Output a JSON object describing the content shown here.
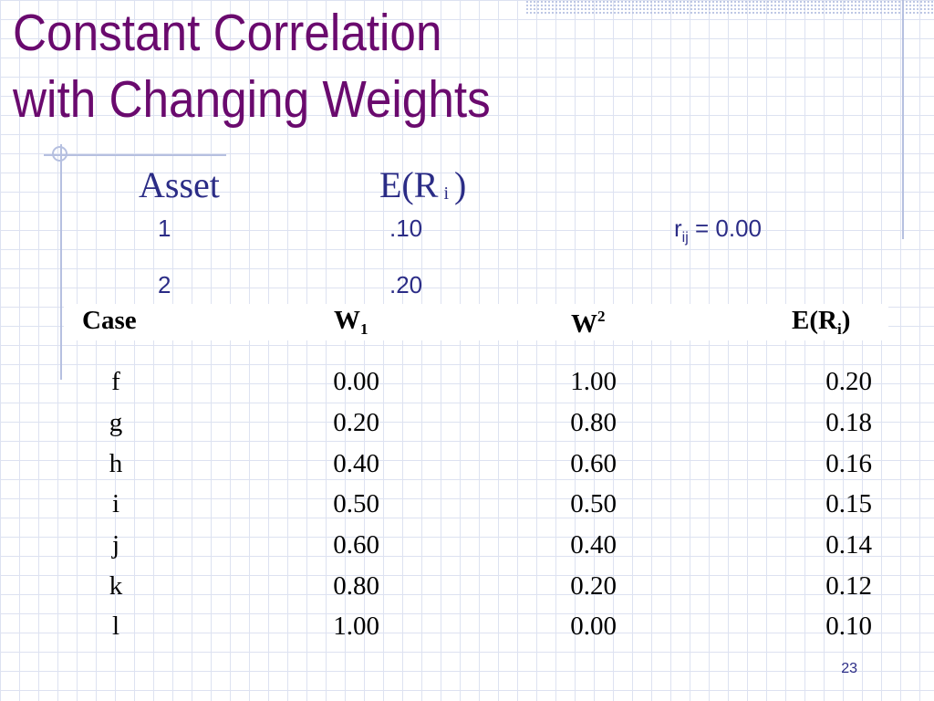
{
  "slide": {
    "title_line1": "Constant Correlation",
    "title_line2": "with Changing Weights",
    "page_number": "23"
  },
  "assets_header": {
    "asset_label": "Asset",
    "er_prefix": "E(R",
    "er_sub": "i",
    "er_suffix": ")"
  },
  "assets": [
    {
      "id": "1",
      "er": ".10"
    },
    {
      "id": "2",
      "er": ".20"
    }
  ],
  "correlation": {
    "r": "r",
    "sub": "ij",
    "value": " = 0.00"
  },
  "table": {
    "headers": {
      "case": "Case",
      "w1_base": "W",
      "w1_sub": "1",
      "w2_base": "W",
      "w2_sup": "2",
      "er_base": "E(R",
      "er_sub": "i",
      "er_end": ")"
    },
    "rows": [
      {
        "case": "f",
        "w1": "0.00",
        "w2": "1.00",
        "er": "0.20"
      },
      {
        "case": "g",
        "w1": "0.20",
        "w2": "0.80",
        "er": "0.18"
      },
      {
        "case": "h",
        "w1": "0.40",
        "w2": "0.60",
        "er": "0.16"
      },
      {
        "case": "i",
        "w1": "0.50",
        "w2": "0.50",
        "er": "0.15"
      },
      {
        "case": "j",
        "w1": "0.60",
        "w2": "0.40",
        "er": "0.14"
      },
      {
        "case": "k",
        "w1": "0.80",
        "w2": "0.20",
        "er": "0.12"
      },
      {
        "case": "l",
        "w1": "1.00",
        "w2": "0.00",
        "er": "0.10"
      }
    ]
  },
  "colors": {
    "title": "#6a0a6e",
    "navy": "#2b2c86",
    "grid": "#dde2f1",
    "accent_lines": "#b6c0e0"
  }
}
